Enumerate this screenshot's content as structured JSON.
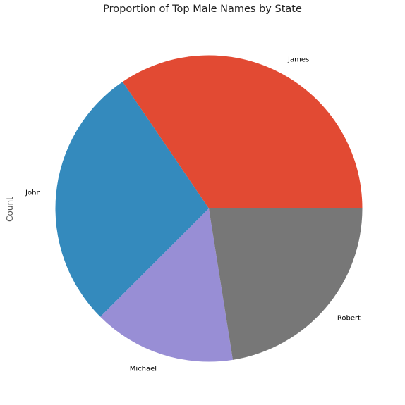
{
  "chart_data": {
    "type": "pie",
    "title": "Proportion of Top Male Names by State",
    "ylabel": "Count",
    "start_angle_deg": 0,
    "direction": "counterclockwise",
    "legend": "none",
    "grid": false,
    "slices": [
      {
        "label": "James",
        "value": 0.345,
        "color": "#E24A33"
      },
      {
        "label": "John",
        "value": 0.28,
        "color": "#348ABD"
      },
      {
        "label": "Michael",
        "value": 0.15,
        "color": "#988ED5"
      },
      {
        "label": "Robert",
        "value": 0.225,
        "color": "#777777"
      }
    ]
  }
}
